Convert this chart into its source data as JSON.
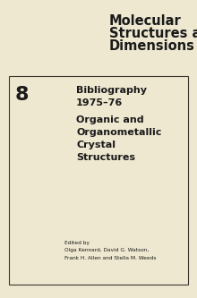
{
  "bg_color": "#eee8d0",
  "title_line1": "Molecular",
  "title_line2": "Structures and",
  "title_line3": "Dimensions",
  "number": "8",
  "bib_line1": "Bibliography",
  "bib_line2": "1975–76",
  "sub_line1": "Organic and",
  "sub_line2": "Organometallic",
  "sub_line3": "Crystal",
  "sub_line4": "Structures",
  "edited_by": "Edited by",
  "editor_line1": "Olga Kennard, David G. Watson,",
  "editor_line2": "Frank H. Allen and Stella M. Weeds"
}
